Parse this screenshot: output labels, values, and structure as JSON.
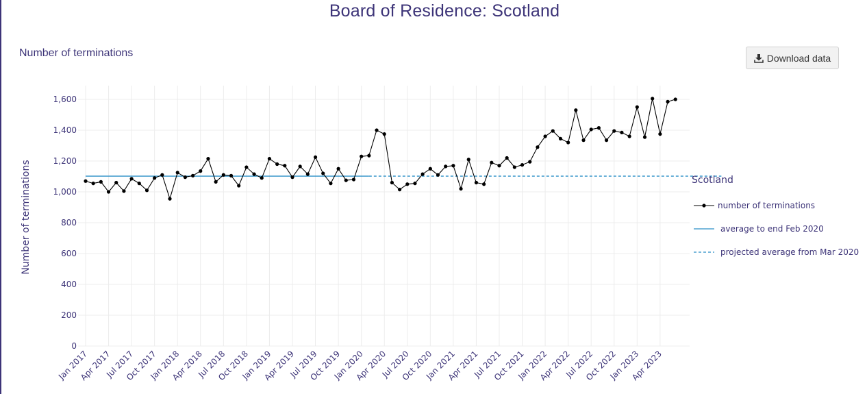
{
  "page": {
    "title": "Board of Residence: Scotland",
    "subtitle": "Number of terminations"
  },
  "download": {
    "label": "Download data",
    "icon": "download-icon"
  },
  "colors": {
    "title": "#3d3478",
    "series": "#000000",
    "average": "#2a8fc7",
    "grid": "#ececec"
  },
  "chart_data": {
    "type": "line",
    "ylabel": "Number of terminations",
    "xlabel": "",
    "ylim": [
      0,
      1700
    ],
    "y_ticks": [
      0,
      200,
      400,
      600,
      800,
      1000,
      1200,
      1400,
      1600
    ],
    "y_tick_labels": [
      "0",
      "200",
      "400",
      "600",
      "800",
      "1,000",
      "1,200",
      "1,400",
      "1,600"
    ],
    "grid": true,
    "x_tick_labels": [
      "Jan 2017",
      "Apr 2017",
      "Jul 2017",
      "Oct 2017",
      "Jan 2018",
      "Apr 2018",
      "Jul 2018",
      "Oct 2018",
      "Jan 2019",
      "Apr 2019",
      "Jul 2019",
      "Oct 2019",
      "Jan 2020",
      "Apr 2020",
      "Jul 2020",
      "Oct 2020",
      "Jan 2021",
      "Apr 2021",
      "Jul 2021",
      "Oct 2021",
      "Jan 2022",
      "Apr 2022",
      "Jul 2022",
      "Oct 2022",
      "Jan 2023",
      "Apr 2023"
    ],
    "x_start": "Jan 2017",
    "x_end": "Jul 2023",
    "legend_title": "Scotland",
    "legend_position": "right",
    "series": [
      {
        "name": "number of terminations",
        "style": "line+markers",
        "values": [
          1070,
          1055,
          1065,
          1000,
          1060,
          1005,
          1085,
          1055,
          1010,
          1090,
          1110,
          955,
          1125,
          1095,
          1105,
          1135,
          1215,
          1065,
          1110,
          1105,
          1040,
          1160,
          1115,
          1090,
          1215,
          1180,
          1170,
          1095,
          1165,
          1115,
          1225,
          1120,
          1055,
          1150,
          1075,
          1080,
          1230,
          1235,
          1400,
          1375,
          1060,
          1015,
          1050,
          1055,
          1115,
          1150,
          1110,
          1165,
          1170,
          1020,
          1210,
          1060,
          1050,
          1190,
          1170,
          1220,
          1160,
          1175,
          1195,
          1290,
          1360,
          1395,
          1345,
          1320,
          1530,
          1335,
          1405,
          1415,
          1335,
          1395,
          1385,
          1360,
          1550,
          1355,
          1605,
          1375,
          1585,
          1600
        ]
      },
      {
        "name": "average to end Feb 2020",
        "style": "solid",
        "value": 1102,
        "from": "Jan 2017",
        "to": "Feb 2020"
      },
      {
        "name": "projected average from Mar 2020",
        "style": "dashed",
        "value": 1102,
        "from": "Feb 2020",
        "to": "Dec 2023"
      }
    ]
  }
}
